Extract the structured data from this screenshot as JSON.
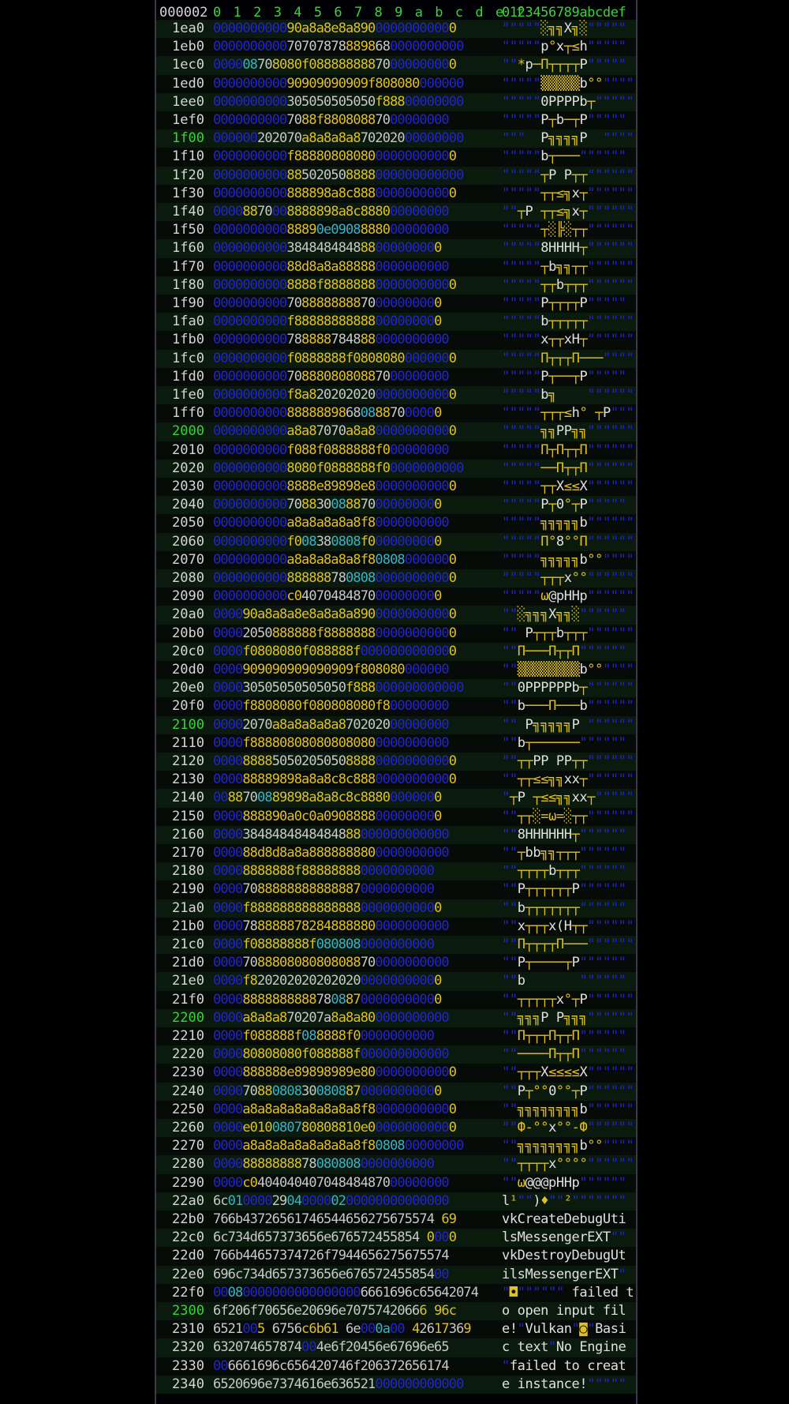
{
  "header": {
    "address_label": "000002",
    "hex_columns": "0 1 2 3 4 5 6 7 8 9 a b c d e f",
    "ascii_columns": "0123456789abcdef"
  },
  "colors": {
    "background": "#020206",
    "header_green": "#3bd23b",
    "zero_byte": "#2323c8",
    "glyph_byte": "#e0c020",
    "control_byte": "#36b4c8",
    "text_byte": "#c8c8c8"
  },
  "rows": [
    {
      "addr": "1ea0",
      "hex": "000000000090a8a8e8a89000000000000",
      "ascii": "\"\"\"\"\"░╗╗X╗░\"\"\"\"\""
    },
    {
      "addr": "1eb0",
      "hex": "0000000000707078788898680000000000",
      "ascii": "\"\"\"\"\"p°x┬≤h\"\"\"\"\""
    },
    {
      "addr": "1ec0",
      "hex": "000008708080f08888888870000000000",
      "ascii": "\"\"*p─П┬┬┬┬P\"\"\"\"\""
    },
    {
      "addr": "1ed0",
      "hex": "000000000090909090909f808080000000",
      "ascii": "\"\"\"\"\"▒▒▒▒▒b°°\"\"\"\""
    },
    {
      "addr": "1ee0",
      "hex": "0000000000305050505050f88800000000",
      "ascii": "\"\"\"\"\"0PPPPb┬\"\"\"\"\""
    },
    {
      "addr": "1ef0",
      "hex": "00000000007088f88080887000000000",
      "ascii": "\"\"\"\"\"P┬b─┬P\"\"\"\"\""
    },
    {
      "addr": "1f00",
      "hex": "000000202070a8a8a8a870202000000000",
      "ascii": "\"\"\"  P╗╗╗╗P  \"\"\"\""
    },
    {
      "addr": "1f10",
      "hex": "0000000000f8888080808000000000000",
      "ascii": "\"\"\"\"\"b┬───\"\"\"\"\"\""
    },
    {
      "addr": "1f20",
      "hex": "0000000000885020508888000000000000",
      "ascii": "\"\"\"\"\"┬P P┬┬\"\"\"\"\"\""
    },
    {
      "addr": "1f30",
      "hex": "0000000000888898a8c88800000000000",
      "ascii": "\"\"\"\"\"┬┬≤╗x┬\"\"\"\"\"\""
    },
    {
      "addr": "1f40",
      "hex": "00008870008888898a8c888000000000",
      "ascii": "\"\"┬P ┬┬≤╗x┬\"\"\"\"\"\""
    },
    {
      "addr": "1f50",
      "hex": "000000000088890e0908888000000000",
      "ascii": "\"\"\"\"\"┬░╠░┬┬\"\"\"\"\"\""
    },
    {
      "addr": "1f60",
      "hex": "0000000000384848484888000000000",
      "ascii": "\"\"\"\"\"8HHHH┬\"\"\"\"\"\""
    },
    {
      "addr": "1f70",
      "hex": "000000000088d8a8a888880000000000",
      "ascii": "\"\"\"\"\"┬b╗╗┬┬\"\"\"\"\"\""
    },
    {
      "addr": "1f80",
      "hex": "00000000008888f888888800000000000",
      "ascii": "\"\"\"\"\"┬┬b┬┬┬\"\"\"\"\"\""
    },
    {
      "addr": "1f90",
      "hex": "0000000000708888888870000000000",
      "ascii": "\"\"\"\"\"P┬┬┬┬P\"\"\"\"\""
    },
    {
      "addr": "1fa0",
      "hex": "0000000000f88888888888000000000",
      "ascii": "\"\"\"\"\"b┬┬┬┬┬\"\"\"\"\"\""
    },
    {
      "addr": "1fb0",
      "hex": "00000000007888887848880000000000",
      "ascii": "\"\"\"\"\"x┬┬xH┬\"\"\"\"\"\""
    },
    {
      "addr": "1fc0",
      "hex": "0000000000f0888888f08080800000000",
      "ascii": "\"\"\"\"\"П┬┬┬П───\"\"\"\"\""
    },
    {
      "addr": "1fd0",
      "hex": "00000000007088808080887000000000",
      "ascii": "\"\"\"\"\"P┬──┬P\"\"\"\"\""
    },
    {
      "addr": "1fe0",
      "hex": "0000000000f8a82020202000000000000",
      "ascii": "\"\"\"\"\"b╗    \"\"\"\"\"\""
    },
    {
      "addr": "1ff0",
      "hex": "0000000000888888986808887000000",
      "ascii": "\"\"\"\"\"┬┬┬≤h° ┬P\"\"\"\""
    },
    {
      "addr": "2000",
      "hex": "0000000000a8a87070a8a800000000000",
      "ascii": "\"\"\"\"\"╗╗PP╗╗\"\"\"\"\"\""
    },
    {
      "addr": "2010",
      "hex": "0000000000f088f0888888f000000000",
      "ascii": "\"\"\"\"\"П┬П┬┬П\"\"\"\"\"\""
    },
    {
      "addr": "2020",
      "hex": "00000000008080f0888888f00000000000",
      "ascii": "\"\"\"\"\"──П┬┬П\"\"\"\"\"\""
    },
    {
      "addr": "2030",
      "hex": "00000000008888e89898e800000000000",
      "ascii": "\"\"\"\"\"┬┬X≤≤X\"\"\"\"\"\""
    },
    {
      "addr": "2040",
      "hex": "0000000000708830088870000000000",
      "ascii": "\"\"\"\"\"P┬0°┬P\"\"\"\"\""
    },
    {
      "addr": "2050",
      "hex": "0000000000a8a8a8a8a8f80000000000",
      "ascii": "\"\"\"\"\"╗╗╗╗╗b\"\"\"\"\"\""
    },
    {
      "addr": "2060",
      "hex": "0000000000f008380808f0000000000",
      "ascii": "\"\"\"\"\"П°8°°П\"\"\"\"\"\""
    },
    {
      "addr": "2070",
      "hex": "0000000000a8a8a8a8a8f808080000000",
      "ascii": "\"\"\"\"\"╗╗╗╗╗b°°\"\"\"\""
    },
    {
      "addr": "2080",
      "hex": "000000000088888878080800000000000",
      "ascii": "\"\"\"\"\"┬┬┬x°°\"\"\"\"\"\""
    },
    {
      "addr": "2090",
      "hex": "0000000000c04070484870000000000",
      "ascii": "\"\"\"\"\"ω@pHHp\"\"\"\"\"\""
    },
    {
      "addr": "20a0",
      "hex": "000090a8a8a8e8a8a8a89000000000000",
      "ascii": "\"\"░╗╗╗X╗╗░\"\"\"\"\"\""
    },
    {
      "addr": "20b0",
      "hex": "00002050888888f888888800000000000",
      "ascii": "\"\" P┬┬┬b┬┬┬\"\"\"\"\"\""
    },
    {
      "addr": "20c0",
      "hex": "0000f0808080f088888f0000000000000",
      "ascii": "\"\"П───П┬┬П\"\"\"\"\"\""
    },
    {
      "addr": "20d0",
      "hex": "0000909090909090909f808080000000",
      "ascii": "\"\"▒▒▒▒▒▒▒▒b°°\"\"\"\""
    },
    {
      "addr": "20e0",
      "hex": "000030505050505050f888000000000000",
      "ascii": "\"\"0PPPPPPb┬\"\"\"\"\"\""
    },
    {
      "addr": "20f0",
      "hex": "0000f8808080f080808080f800000000",
      "ascii": "\"\"b───П───b\"\"\"\"\"\""
    },
    {
      "addr": "2100",
      "hex": "00002070a8a8a8a8a870202000000000",
      "ascii": "\"\" P╗╗╗╗╗P \"\"\"\"\"\""
    },
    {
      "addr": "2110",
      "hex": "0000f888808080808080800000000000",
      "ascii": "\"\"b┬──────\"\"\"\"\"\""
    },
    {
      "addr": "2120",
      "hex": "000088885050205050888800000000000",
      "ascii": "\"\"┬┬PP PP┬┬\"\"\"\"\"\""
    },
    {
      "addr": "2130",
      "hex": "000088889898a8a8c8c88800000000000",
      "ascii": "\"\"┬┬≤≤╗╗xx┬\"\"\"\"\"\""
    },
    {
      "addr": "2140",
      "hex": "0088700889898a8a8c8c88800000000",
      "ascii": "\"┬P ┬≤≤╗╗xx┬\"\"\"\"\""
    },
    {
      "addr": "2150",
      "hex": "0000888890a0c0a0908888000000000",
      "ascii": "\"\"┬┬░=ω=░┬┬\"\"\"\"\"\""
    },
    {
      "addr": "2160",
      "hex": "00003848484848484888000000000000",
      "ascii": "\"\"8HHHHHH┬\"\"\"\"\"\""
    },
    {
      "addr": "2170",
      "hex": "000088d8d8a8a8888888800000000000",
      "ascii": "\"\"┬bb╗╗┬┬┬\"\"\"\"\"\""
    },
    {
      "addr": "2180",
      "hex": "00008888888f888888880000000000",
      "ascii": "\"\"┬┬┬┬b┬┬┬\"\"\"\"\"\""
    },
    {
      "addr": "2190",
      "hex": "000070888888888888870000000000",
      "ascii": "\"\"P┬┬┬┬┬┬P\"\"\"\"\"\""
    },
    {
      "addr": "21a0",
      "hex": "0000f88888888888888800000000000",
      "ascii": "\"\"b┬┬┬┬┬┬┬\"\"\"\"\"\""
    },
    {
      "addr": "21b0",
      "hex": "00007888888782848888800000000000",
      "ascii": "\"\"x┬┬┬x(H┬┬\"\"\"\"\"\""
    },
    {
      "addr": "21c0",
      "hex": "0000f08888888f0808080000000000",
      "ascii": "\"\"П┬┬┬┬П───\"\"\"\"\"\""
    },
    {
      "addr": "21d0",
      "hex": "00007088808080808088700000000000",
      "ascii": "\"\"P┬────┬P\"\"\"\"\"\""
    },
    {
      "addr": "21e0",
      "hex": "0000f82020202020202000000000000",
      "ascii": "\"\"b       \"\"\"\"\"\""
    },
    {
      "addr": "21f0",
      "hex": "0000888888888878088700000000000",
      "ascii": "\"\"┬┬┬┬┬x°┬P\"\"\"\"\"\""
    },
    {
      "addr": "2200",
      "hex": "0000a8a8a870207a8a8a800000000000",
      "ascii": "\"\"╗╗╗P P╗╗╗\"\"\"\"\"\""
    },
    {
      "addr": "2210",
      "hex": "0000f088888f088888f00000000000",
      "ascii": "\"\"П┬┬┬П┬┬П\"\"\"\"\"\""
    },
    {
      "addr": "2220",
      "hex": "000080808080f088888f000000000000",
      "ascii": "\"\"────П┬┬П\"\"\"\"\"\""
    },
    {
      "addr": "2230",
      "hex": "0000888888e89898989e8000000000000",
      "ascii": "\"\"┬┬┬X≤≤≤≤X\"\"\"\"\"\""
    },
    {
      "addr": "2240",
      "hex": "0000708808083008088700000000000",
      "ascii": "\"\"P┬°°0°°┬P\"\"\"\"\"\""
    },
    {
      "addr": "2250",
      "hex": "0000a8a8a8a8a8a8a8a8f800000000000",
      "ascii": "\"\"╗╗╗╗╗╗╗╗b\"\"\"\"\"\""
    },
    {
      "addr": "2260",
      "hex": "0000e010080780808810e000000000000",
      "ascii": "\"\"Ф-°°x°°-Ф\"\"\"\"\"\""
    },
    {
      "addr": "2270",
      "hex": "0000a8a8a8a8a8a8a8a8f8080800000000",
      "ascii": "\"\"╗╗╗╗╗╗╗╗b°°\"\"\"\""
    },
    {
      "addr": "2280",
      "hex": "000088888888780808080000000000",
      "ascii": "\"\"┬┬┬┬x°°°°\"\"\"\"\"\""
    },
    {
      "addr": "2290",
      "hex": "0000c040404040704848487000000000",
      "ascii": "\"\"ω@@@pHHp\"\"\"\"\"\""
    },
    {
      "addr": "22a0",
      "hex": "6c010000290400000200000000000000",
      "ascii": "l¹\"\")♦\"\"²\"\"\"\"\"\"\""
    },
    {
      "addr": "22b0",
      "hex": "766b43726561746544656275675574 69",
      "ascii": "vkCreateDebugUti"
    },
    {
      "addr": "22c0",
      "hex": "6c734d657373656e676572455854 0000",
      "ascii": "lsMessengerEXT\"\""
    },
    {
      "addr": "22d0",
      "hex": "766b44657374726f7944656275675574",
      "ascii": "vkDestroyDebugUt"
    },
    {
      "addr": "22e0",
      "hex": "696c734d657373656e67657245585400",
      "ascii": "ilsMessengerEXT\""
    },
    {
      "addr": "22f0",
      "hex": "000800000000000000006661696c65642074",
      "ascii": "\"◘\"\"\"\"\"\" failed t"
    },
    {
      "addr": "2300",
      "hex": "6f206f70656e20696e70757420666 96c",
      "ascii": "o open input fil"
    },
    {
      "addr": "2310",
      "hex": "6521005 6756c6b61 6e000a00 42617369",
      "ascii": "e!\"Vulkan\"◙\"Basi"
    },
    {
      "addr": "2320",
      "hex": "632074657874004e6f20456e67696e65",
      "ascii": "c text\"No Engine"
    },
    {
      "addr": "2330",
      "hex": "006661696c656420746f206372656174",
      "ascii": "\"failed to creat"
    },
    {
      "addr": "2340",
      "hex": "6520696e7374616e636521000000000000",
      "ascii": "e instance!\"\"\"\"\""
    }
  ]
}
